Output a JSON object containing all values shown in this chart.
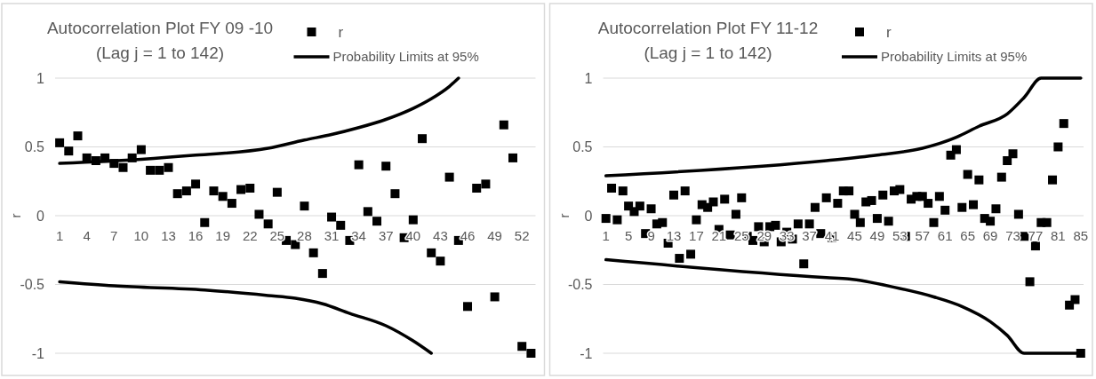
{
  "chart_data": [
    {
      "type": "scatter",
      "title": "Autocorrelation Plot FY 09 -10",
      "subtitle": "(Lag j = 1 to 142)",
      "ylabel": "r",
      "xlim": [
        0.5,
        53.5
      ],
      "xticks": [
        1,
        4,
        7,
        10,
        13,
        16,
        19,
        22,
        25,
        28,
        31,
        34,
        37,
        40,
        43,
        46,
        49,
        52
      ],
      "ylim": [
        -1,
        1
      ],
      "yticks": [
        -1,
        -0.5,
        0,
        0.5,
        1
      ],
      "grid": "y",
      "legend": "top right",
      "series": [
        {
          "name": "r",
          "marker": "square",
          "color": "#000000",
          "x": [
            1,
            2,
            3,
            4,
            5,
            6,
            7,
            8,
            9,
            10,
            11,
            12,
            13,
            14,
            15,
            16,
            17,
            18,
            19,
            20,
            21,
            22,
            23,
            24,
            25,
            26,
            27,
            28,
            29,
            30,
            31,
            32,
            33,
            34,
            35,
            36,
            37,
            38,
            39,
            40,
            41,
            42,
            43,
            44,
            45,
            46,
            47,
            48,
            49,
            50,
            51,
            52,
            53
          ],
          "values": [
            0.53,
            0.47,
            0.58,
            0.42,
            0.4,
            0.42,
            0.38,
            0.35,
            0.42,
            0.48,
            0.33,
            0.33,
            0.35,
            0.16,
            0.18,
            0.23,
            -0.05,
            0.18,
            0.14,
            0.09,
            0.19,
            0.2,
            0.01,
            -0.06,
            0.17,
            -0.18,
            -0.21,
            0.07,
            -0.27,
            -0.42,
            -0.01,
            -0.07,
            -0.18,
            0.37,
            0.03,
            -0.04,
            0.36,
            0.16,
            -0.16,
            -0.03,
            0.56,
            -0.27,
            -0.33,
            0.28,
            -0.18,
            -0.66,
            0.2,
            0.23,
            -0.59,
            0.66,
            0.42,
            -0.95,
            -1
          ]
        },
        {
          "name": "Probability Limits at 95%",
          "type": "line",
          "marker": "none",
          "color": "#000000",
          "x": [
            1,
            10,
            16,
            24,
            28,
            31,
            34,
            37,
            40,
            42,
            44,
            45
          ],
          "values": [
            0.38,
            0.41,
            0.44,
            0.49,
            0.55,
            0.59,
            0.64,
            0.7,
            0.78,
            0.85,
            0.94,
            1
          ]
        },
        {
          "type": "line",
          "marker": "none",
          "color": "#000000",
          "x": [
            1,
            7,
            17,
            24,
            27,
            30,
            33,
            37,
            40,
            42
          ],
          "values": [
            -0.48,
            -0.51,
            -0.54,
            -0.58,
            -0.6,
            -0.64,
            -0.71,
            -0.8,
            -0.91,
            -1
          ]
        }
      ]
    },
    {
      "type": "scatter",
      "title": "Autocorrelation Plot FY 11-12",
      "subtitle": "(Lag j = 1 to 142)",
      "ylabel": "r",
      "xlim": [
        0.5,
        85.5
      ],
      "xticks": [
        1,
        5,
        9,
        13,
        17,
        21,
        25,
        29,
        33,
        37,
        41,
        45,
        49,
        53,
        57,
        61,
        65,
        69,
        73,
        77,
        81,
        85
      ],
      "ylim": [
        -1,
        1
      ],
      "yticks": [
        -1,
        -0.5,
        0,
        0.5,
        1
      ],
      "grid": "y",
      "legend": "top right",
      "series": [
        {
          "name": "r",
          "marker": "square",
          "color": "#000000",
          "x": [
            1,
            2,
            3,
            4,
            5,
            6,
            7,
            8,
            9,
            10,
            11,
            12,
            13,
            14,
            15,
            16,
            17,
            18,
            19,
            20,
            21,
            22,
            23,
            24,
            25,
            26,
            27,
            28,
            29,
            30,
            31,
            32,
            33,
            34,
            35,
            36,
            37,
            38,
            39,
            40,
            41,
            42,
            43,
            44,
            45,
            46,
            47,
            48,
            49,
            50,
            51,
            52,
            53,
            54,
            55,
            56,
            57,
            58,
            59,
            60,
            61,
            62,
            63,
            64,
            65,
            66,
            67,
            68,
            69,
            70,
            71,
            72,
            73,
            74,
            75,
            76,
            77,
            78,
            79,
            80,
            81,
            82,
            83,
            84,
            85
          ],
          "values": [
            -0.02,
            0.2,
            -0.03,
            0.18,
            0.07,
            0.03,
            0.07,
            -0.13,
            0.05,
            -0.06,
            -0.05,
            -0.2,
            0.15,
            -0.31,
            0.18,
            -0.28,
            -0.03,
            0.08,
            0.06,
            0.1,
            -0.1,
            0.12,
            -0.14,
            0.01,
            0.13,
            -0.15,
            -0.18,
            -0.08,
            -0.19,
            -0.08,
            -0.07,
            -0.19,
            -0.12,
            -0.17,
            -0.06,
            -0.35,
            -0.06,
            0.06,
            -0.13,
            0.13,
            -0.16,
            0.09,
            0.18,
            0.18,
            0.01,
            -0.05,
            0.1,
            0.11,
            -0.02,
            0.15,
            -0.04,
            0.18,
            0.19,
            -0.15,
            0.12,
            0.14,
            0.14,
            0.09,
            -0.05,
            0.14,
            0.04,
            0.44,
            0.48,
            0.06,
            0.3,
            0.08,
            0.26,
            -0.02,
            -0.04,
            0.05,
            0.28,
            0.4,
            0.45,
            0.01,
            -0.15,
            -0.48,
            -0.22,
            -0.05,
            -0.05,
            0.26,
            0.5,
            0.67,
            -0.65,
            -0.61,
            -1
          ]
        },
        {
          "name": "Probability Limits at 95%",
          "type": "line",
          "marker": "none",
          "color": "#000000",
          "x": [
            1,
            40,
            49,
            57,
            63,
            67,
            72,
            75,
            78,
            85
          ],
          "values": [
            0.29,
            0.4,
            0.44,
            0.49,
            0.57,
            0.65,
            0.74,
            0.86,
            1,
            1
          ]
        },
        {
          "type": "line",
          "marker": "none",
          "color": "#000000",
          "x": [
            1,
            40,
            44,
            52,
            59,
            64,
            69,
            72,
            75,
            85
          ],
          "values": [
            -0.32,
            -0.45,
            -0.46,
            -0.52,
            -0.59,
            -0.66,
            -0.77,
            -0.87,
            -1,
            -1
          ]
        }
      ]
    }
  ]
}
